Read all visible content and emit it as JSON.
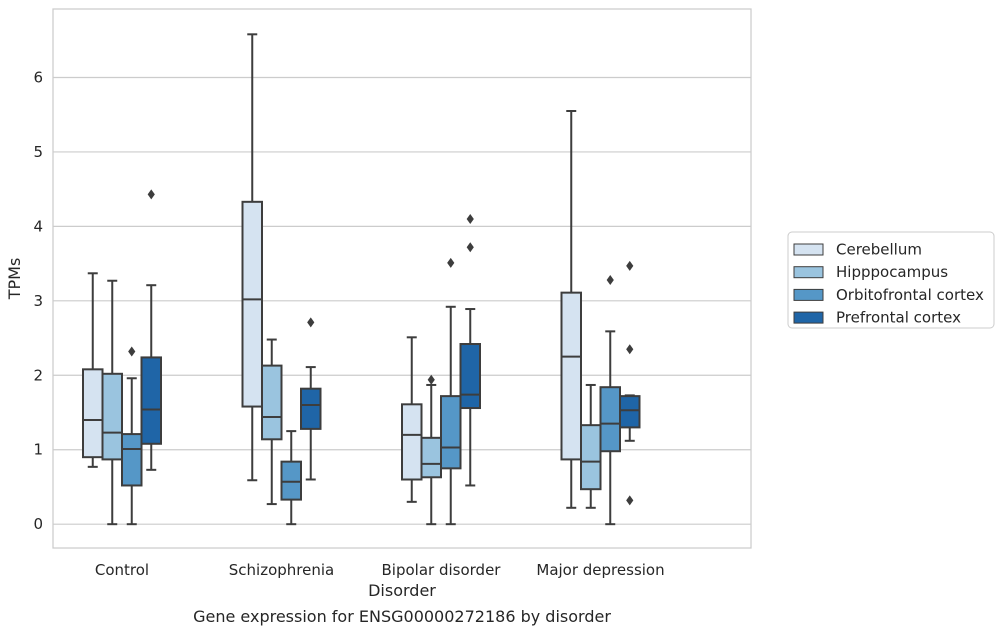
{
  "chart_data": {
    "type": "box",
    "title": "",
    "caption": "Gene expression for ENSG00000272186 by disorder",
    "xlabel": "Disorder",
    "ylabel": "TPMs",
    "ylim": [
      -0.32,
      6.92
    ],
    "yticks": [
      0,
      1,
      2,
      3,
      4,
      5,
      6
    ],
    "grid": "horizontal",
    "legend_position": "right",
    "categories": [
      "Control",
      "Schizophrenia",
      "Bipolar disorder",
      "Major depression"
    ],
    "series": [
      {
        "name": "Cerebellum",
        "color": "#d5e3f1",
        "boxes": [
          {
            "whisker_low": 0.77,
            "q1": 0.9,
            "median": 1.4,
            "q3": 2.08,
            "whisker_high": 3.37,
            "outliers": []
          },
          {
            "whisker_low": 0.59,
            "q1": 1.58,
            "median": 3.02,
            "q3": 4.33,
            "whisker_high": 6.58,
            "outliers": []
          },
          {
            "whisker_low": 0.3,
            "q1": 0.6,
            "median": 1.2,
            "q3": 1.61,
            "whisker_high": 2.51,
            "outliers": []
          },
          {
            "whisker_low": 0.22,
            "q1": 0.87,
            "median": 2.25,
            "q3": 3.11,
            "whisker_high": 5.55,
            "outliers": []
          }
        ]
      },
      {
        "name": "Hipppocampus",
        "color": "#9ac4df",
        "boxes": [
          {
            "whisker_low": 0.0,
            "q1": 0.87,
            "median": 1.23,
            "q3": 2.02,
            "whisker_high": 3.27,
            "outliers": []
          },
          {
            "whisker_low": 0.27,
            "q1": 1.14,
            "median": 1.44,
            "q3": 2.13,
            "whisker_high": 2.48,
            "outliers": []
          },
          {
            "whisker_low": 0.0,
            "q1": 0.63,
            "median": 0.81,
            "q3": 1.16,
            "whisker_high": 1.87,
            "outliers": [
              1.94
            ]
          },
          {
            "whisker_low": 0.22,
            "q1": 0.47,
            "median": 0.84,
            "q3": 1.33,
            "whisker_high": 1.87,
            "outliers": []
          }
        ]
      },
      {
        "name": "Orbitofrontal cortex",
        "color": "#5597c7",
        "boxes": [
          {
            "whisker_low": 0.0,
            "q1": 0.52,
            "median": 1.01,
            "q3": 1.21,
            "whisker_high": 1.96,
            "outliers": [
              2.32
            ]
          },
          {
            "whisker_low": 0.0,
            "q1": 0.33,
            "median": 0.57,
            "q3": 0.84,
            "whisker_high": 1.25,
            "outliers": []
          },
          {
            "whisker_low": 0.0,
            "q1": 0.75,
            "median": 1.03,
            "q3": 1.72,
            "whisker_high": 2.92,
            "outliers": [
              3.51
            ]
          },
          {
            "whisker_low": 0.0,
            "q1": 0.98,
            "median": 1.35,
            "q3": 1.84,
            "whisker_high": 2.59,
            "outliers": [
              3.28
            ]
          }
        ]
      },
      {
        "name": "Prefrontal cortex",
        "color": "#1f65a7",
        "boxes": [
          {
            "whisker_low": 0.73,
            "q1": 1.08,
            "median": 1.54,
            "q3": 2.24,
            "whisker_high": 3.21,
            "outliers": [
              4.43
            ]
          },
          {
            "whisker_low": 0.6,
            "q1": 1.28,
            "median": 1.6,
            "q3": 1.82,
            "whisker_high": 2.11,
            "outliers": [
              2.71
            ]
          },
          {
            "whisker_low": 0.52,
            "q1": 1.56,
            "median": 1.74,
            "q3": 2.42,
            "whisker_high": 2.89,
            "outliers": [
              3.72,
              4.1
            ]
          },
          {
            "whisker_low": 1.12,
            "q1": 1.3,
            "median": 1.53,
            "q3": 1.72,
            "whisker_high": 1.73,
            "outliers": [
              0.32,
              2.35,
              3.47
            ]
          }
        ]
      }
    ]
  }
}
